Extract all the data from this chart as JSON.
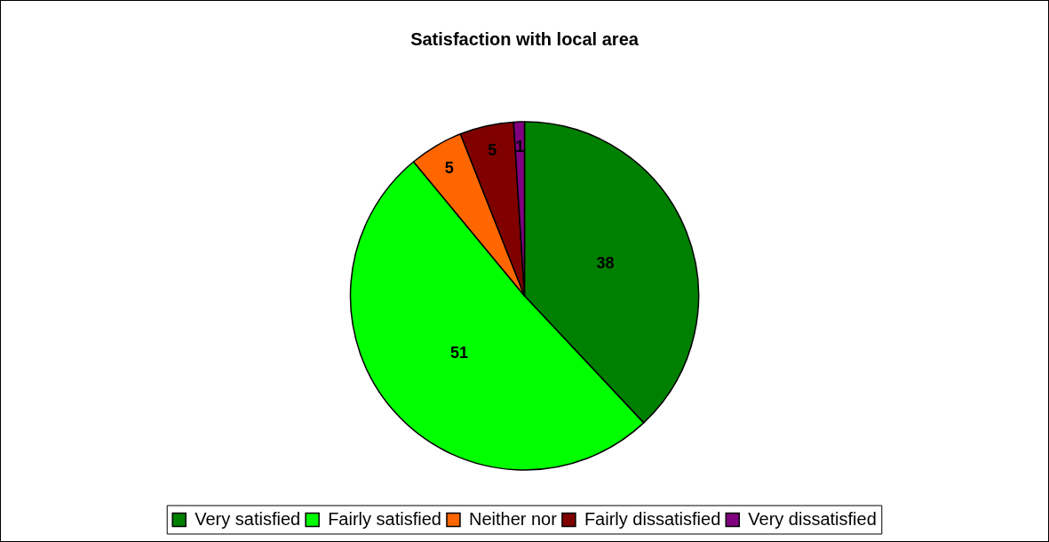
{
  "chart_data": {
    "type": "pie",
    "title": "Satisfaction with local area",
    "categories": [
      "Very satisfied",
      "Fairly satisfied",
      "Neither nor",
      "Fairly dissatisfied",
      "Very dissatisfied"
    ],
    "values": [
      38,
      51,
      5,
      5,
      1
    ],
    "colors": [
      "#008000",
      "#00ff00",
      "#ff6600",
      "#800000",
      "#800080"
    ],
    "data_labels": true,
    "legend": "bottom"
  }
}
